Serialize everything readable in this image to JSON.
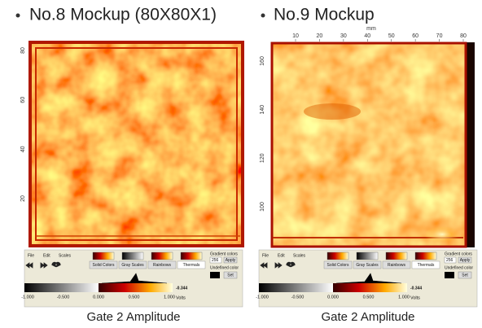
{
  "slide": {
    "panels": [
      {
        "title": "No.8 Mockup (80X80X1)",
        "caption": "Gate 2 Amplitude",
        "left_ticks": [
          "80",
          "60",
          "40",
          "20"
        ],
        "toolbar": {
          "menus": [
            "File",
            "Edit",
            "Scales"
          ],
          "tabs": [
            "Solid Colors",
            "Gray Scales",
            "Rainbows",
            "Thermals"
          ],
          "gradient_label": "Gradient colors",
          "gradient_value": "256",
          "apply": "Apply",
          "undefined_label": "Undefined color",
          "set": "Set",
          "scale_ticks": [
            "-1.000",
            "-0.500",
            "0.000",
            "0.500",
            "1.000"
          ],
          "unit": "Volts",
          "reading": "-0.344"
        }
      },
      {
        "title": "No.9 Mockup",
        "caption": "Gate 2 Amplitude",
        "top_ticks": [
          "10",
          "20",
          "30",
          "40",
          "50",
          "60",
          "70",
          "80"
        ],
        "top_unit": "mm",
        "left_ticks": [
          "160",
          "140",
          "120",
          "100"
        ],
        "toolbar": {
          "menus": [
            "File",
            "Edit",
            "Scales"
          ],
          "tabs": [
            "Solid Colors",
            "Gray Scales",
            "Rainbows",
            "Thermals"
          ],
          "gradient_label": "Gradient colors",
          "gradient_value": "256",
          "apply": "Apply",
          "undefined_label": "Undefined color",
          "set": "Set",
          "scale_ticks": [
            "-1.000",
            "-0.500",
            "0.000",
            "0.500",
            "1.000"
          ],
          "unit": "Volts",
          "reading": "-0.344"
        }
      }
    ]
  }
}
